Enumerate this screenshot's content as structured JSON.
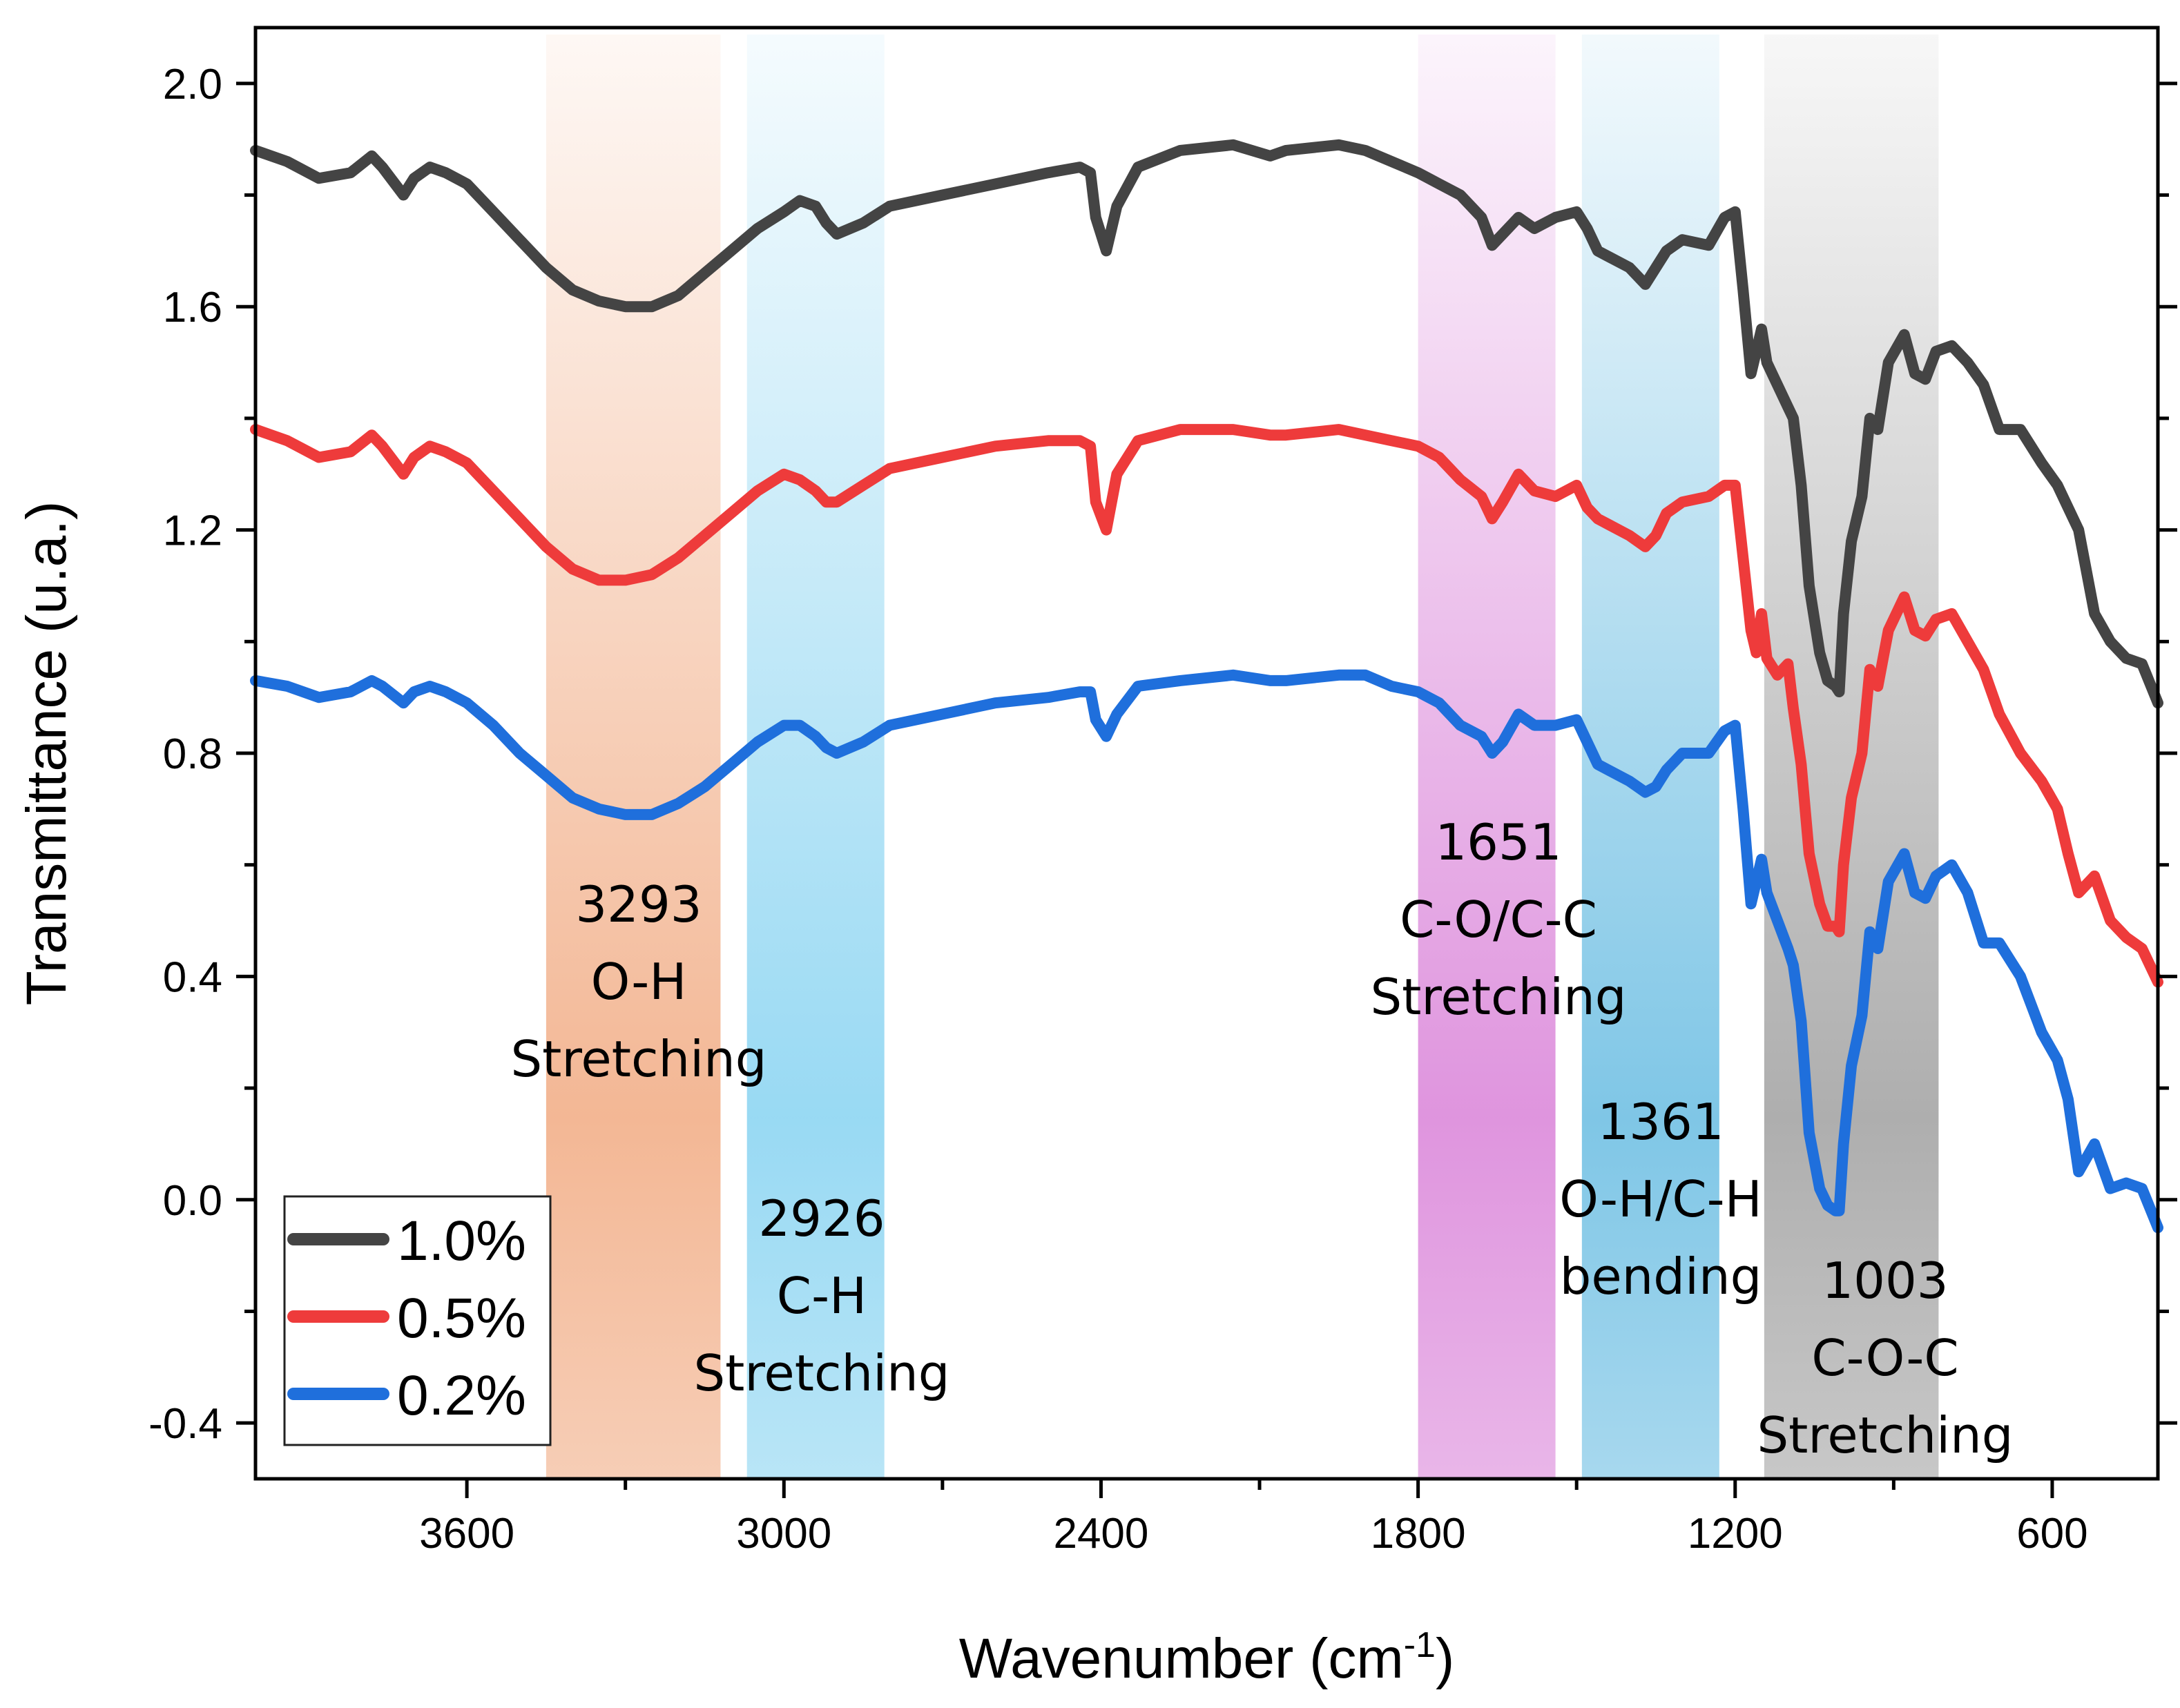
{
  "chart_data": {
    "type": "line",
    "xlabel": "Wavenumber (cm",
    "xlabel_sup": "-1",
    "xlabel_end": ")",
    "ylabel": "Transmittance (u.a.)",
    "xlim": [
      4000,
      400
    ],
    "ylim": [
      -0.5,
      2.1
    ],
    "x_reversed": true,
    "x_ticks": [
      3600,
      3000,
      2400,
      1800,
      1200,
      600
    ],
    "y_ticks": [
      2.0,
      1.6,
      1.2,
      0.8,
      0.4,
      0.0,
      -0.4
    ],
    "y_tick_labels": [
      "2.0",
      "1.6",
      "1.2",
      "0.8",
      "0.4",
      "0.0",
      "-0.4"
    ],
    "grid": false,
    "legend_position": "bottom-left",
    "bands": [
      {
        "from": 3450,
        "to": 3120,
        "color": "#f0a57a"
      },
      {
        "from": 3070,
        "to": 2810,
        "color": "#7fd0f0"
      },
      {
        "from": 1800,
        "to": 1540,
        "color": "#d77ad6"
      },
      {
        "from": 1490,
        "to": 1230,
        "color": "#5fb8e0"
      },
      {
        "from": 1145,
        "to": 815,
        "color": "#9a9a9a"
      }
    ],
    "annotations": [
      {
        "lines": [
          "3293",
          "O-H",
          "Stretching"
        ]
      },
      {
        "lines": [
          "2926",
          "C-H",
          "Stretching"
        ]
      },
      {
        "lines": [
          "1651",
          "C-O/C-C",
          "Stretching"
        ]
      },
      {
        "lines": [
          "1361",
          "O-H/C-H",
          "bending"
        ]
      },
      {
        "lines": [
          "1003",
          "C-O-C",
          "Stretching"
        ]
      }
    ],
    "series": [
      {
        "name": "1.0%",
        "color": "#444444",
        "x": [
          4000,
          3940,
          3880,
          3820,
          3780,
          3760,
          3720,
          3700,
          3670,
          3640,
          3600,
          3550,
          3500,
          3450,
          3400,
          3350,
          3300,
          3250,
          3200,
          3150,
          3100,
          3050,
          3000,
          2970,
          2940,
          2920,
          2900,
          2850,
          2800,
          2700,
          2600,
          2500,
          2440,
          2420,
          2410,
          2390,
          2370,
          2330,
          2250,
          2150,
          2080,
          2050,
          1950,
          1900,
          1850,
          1800,
          1760,
          1720,
          1680,
          1660,
          1640,
          1610,
          1580,
          1540,
          1500,
          1480,
          1460,
          1440,
          1400,
          1370,
          1350,
          1330,
          1300,
          1250,
          1220,
          1200,
          1185,
          1170,
          1160,
          1150,
          1140,
          1120,
          1100,
          1090,
          1075,
          1060,
          1040,
          1025,
          1010,
          1003,
          995,
          980,
          960,
          945,
          930,
          910,
          880,
          860,
          840,
          820,
          790,
          760,
          730,
          700,
          660,
          620,
          590,
          570,
          550,
          520,
          490,
          460,
          430,
          400
        ],
        "y": [
          1.88,
          1.86,
          1.83,
          1.84,
          1.87,
          1.85,
          1.8,
          1.83,
          1.85,
          1.84,
          1.82,
          1.77,
          1.72,
          1.67,
          1.63,
          1.61,
          1.6,
          1.6,
          1.62,
          1.66,
          1.7,
          1.74,
          1.77,
          1.79,
          1.78,
          1.75,
          1.73,
          1.75,
          1.78,
          1.8,
          1.82,
          1.84,
          1.85,
          1.84,
          1.76,
          1.7,
          1.78,
          1.85,
          1.88,
          1.89,
          1.87,
          1.88,
          1.89,
          1.88,
          1.86,
          1.84,
          1.82,
          1.8,
          1.76,
          1.71,
          1.73,
          1.76,
          1.74,
          1.76,
          1.77,
          1.74,
          1.7,
          1.69,
          1.67,
          1.64,
          1.67,
          1.7,
          1.72,
          1.71,
          1.76,
          1.77,
          1.63,
          1.48,
          1.52,
          1.56,
          1.5,
          1.46,
          1.42,
          1.4,
          1.28,
          1.1,
          0.98,
          0.93,
          0.92,
          0.91,
          1.05,
          1.18,
          1.26,
          1.4,
          1.38,
          1.5,
          1.55,
          1.48,
          1.47,
          1.52,
          1.53,
          1.5,
          1.46,
          1.38,
          1.38,
          1.32,
          1.28,
          1.24,
          1.2,
          1.05,
          1.0,
          0.97,
          0.96,
          0.89
        ]
      },
      {
        "name": "0.5%",
        "color": "#ee3b3b",
        "x": [
          4000,
          3940,
          3880,
          3820,
          3780,
          3760,
          3720,
          3700,
          3670,
          3640,
          3600,
          3550,
          3500,
          3450,
          3400,
          3350,
          3300,
          3250,
          3200,
          3150,
          3100,
          3050,
          3000,
          2970,
          2940,
          2920,
          2900,
          2850,
          2800,
          2700,
          2600,
          2500,
          2440,
          2420,
          2410,
          2390,
          2370,
          2330,
          2250,
          2150,
          2080,
          2050,
          1950,
          1900,
          1850,
          1800,
          1760,
          1720,
          1680,
          1660,
          1640,
          1610,
          1580,
          1540,
          1500,
          1480,
          1460,
          1440,
          1400,
          1370,
          1350,
          1330,
          1300,
          1250,
          1220,
          1200,
          1185,
          1170,
          1160,
          1150,
          1140,
          1120,
          1100,
          1090,
          1075,
          1060,
          1040,
          1025,
          1010,
          1003,
          995,
          980,
          960,
          945,
          930,
          910,
          880,
          860,
          840,
          820,
          790,
          760,
          730,
          700,
          660,
          620,
          590,
          570,
          550,
          520,
          490,
          460,
          430,
          400
        ],
        "y": [
          1.38,
          1.36,
          1.33,
          1.34,
          1.37,
          1.35,
          1.3,
          1.33,
          1.35,
          1.34,
          1.32,
          1.27,
          1.22,
          1.17,
          1.13,
          1.11,
          1.11,
          1.12,
          1.15,
          1.19,
          1.23,
          1.27,
          1.3,
          1.29,
          1.27,
          1.25,
          1.25,
          1.28,
          1.31,
          1.33,
          1.35,
          1.36,
          1.36,
          1.35,
          1.25,
          1.2,
          1.3,
          1.36,
          1.38,
          1.38,
          1.37,
          1.37,
          1.38,
          1.37,
          1.36,
          1.35,
          1.33,
          1.29,
          1.26,
          1.22,
          1.25,
          1.3,
          1.27,
          1.26,
          1.28,
          1.24,
          1.22,
          1.21,
          1.19,
          1.17,
          1.19,
          1.23,
          1.25,
          1.26,
          1.28,
          1.28,
          1.15,
          1.02,
          0.98,
          1.05,
          0.97,
          0.94,
          0.96,
          0.88,
          0.78,
          0.62,
          0.53,
          0.49,
          0.49,
          0.48,
          0.6,
          0.72,
          0.8,
          0.95,
          0.92,
          1.02,
          1.08,
          1.02,
          1.01,
          1.04,
          1.05,
          1.0,
          0.95,
          0.87,
          0.8,
          0.75,
          0.7,
          0.62,
          0.55,
          0.58,
          0.5,
          0.47,
          0.45,
          0.39
        ]
      },
      {
        "name": "0.2%",
        "color": "#1f6fdc",
        "x": [
          4000,
          3940,
          3880,
          3820,
          3780,
          3760,
          3720,
          3700,
          3670,
          3640,
          3600,
          3550,
          3500,
          3450,
          3400,
          3350,
          3300,
          3250,
          3200,
          3150,
          3100,
          3050,
          3000,
          2970,
          2940,
          2920,
          2900,
          2850,
          2800,
          2700,
          2600,
          2500,
          2440,
          2420,
          2410,
          2390,
          2370,
          2330,
          2250,
          2150,
          2080,
          2050,
          1950,
          1900,
          1850,
          1800,
          1760,
          1720,
          1680,
          1660,
          1640,
          1610,
          1580,
          1540,
          1500,
          1480,
          1460,
          1440,
          1400,
          1370,
          1350,
          1330,
          1300,
          1250,
          1220,
          1200,
          1185,
          1170,
          1160,
          1150,
          1140,
          1120,
          1100,
          1090,
          1075,
          1060,
          1040,
          1025,
          1010,
          1003,
          995,
          980,
          960,
          945,
          930,
          910,
          880,
          860,
          840,
          820,
          790,
          760,
          730,
          700,
          660,
          620,
          590,
          570,
          550,
          520,
          490,
          460,
          430,
          400
        ],
        "y": [
          0.93,
          0.92,
          0.9,
          0.91,
          0.93,
          0.92,
          0.89,
          0.91,
          0.92,
          0.91,
          0.89,
          0.85,
          0.8,
          0.76,
          0.72,
          0.7,
          0.69,
          0.69,
          0.71,
          0.74,
          0.78,
          0.82,
          0.85,
          0.85,
          0.83,
          0.81,
          0.8,
          0.82,
          0.85,
          0.87,
          0.89,
          0.9,
          0.91,
          0.91,
          0.86,
          0.83,
          0.87,
          0.92,
          0.93,
          0.94,
          0.93,
          0.93,
          0.94,
          0.94,
          0.92,
          0.91,
          0.89,
          0.85,
          0.83,
          0.8,
          0.82,
          0.87,
          0.85,
          0.85,
          0.86,
          0.82,
          0.78,
          0.77,
          0.75,
          0.73,
          0.74,
          0.77,
          0.8,
          0.8,
          0.84,
          0.85,
          0.7,
          0.53,
          0.57,
          0.61,
          0.55,
          0.5,
          0.45,
          0.42,
          0.32,
          0.12,
          0.02,
          -0.01,
          -0.02,
          -0.02,
          0.1,
          0.24,
          0.33,
          0.48,
          0.45,
          0.57,
          0.62,
          0.55,
          0.54,
          0.58,
          0.6,
          0.55,
          0.46,
          0.46,
          0.4,
          0.3,
          0.25,
          0.18,
          0.05,
          0.1,
          0.02,
          0.03,
          0.02,
          -0.05
        ]
      }
    ]
  }
}
